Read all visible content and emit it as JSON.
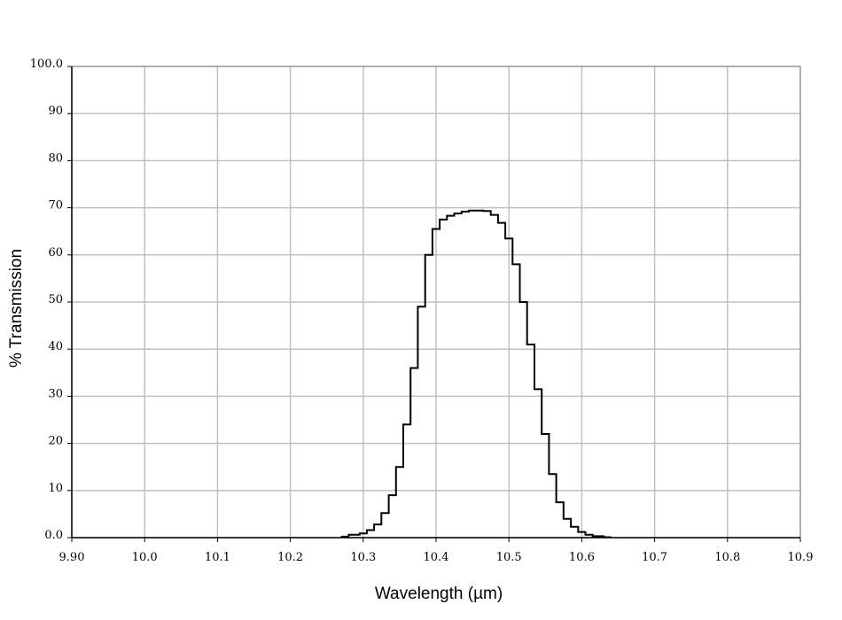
{
  "chart_data": {
    "type": "line",
    "title": "",
    "xlabel": "Wavelength (µm)",
    "ylabel": "% Transmission",
    "xlim": [
      9.9,
      10.9
    ],
    "ylim": [
      0,
      100
    ],
    "x_ticks": [
      9.9,
      10.0,
      10.1,
      10.2,
      10.3,
      10.4,
      10.5,
      10.6,
      10.7,
      10.8,
      10.9
    ],
    "x_tick_labels": [
      "9.90",
      "10.0",
      "10.1",
      "10.2",
      "10.3",
      "10.4",
      "10.5",
      "10.6",
      "10.7",
      "10.8",
      "10.9"
    ],
    "y_ticks": [
      0,
      10,
      20,
      30,
      40,
      50,
      60,
      70,
      80,
      90,
      100
    ],
    "y_tick_labels": [
      "0.0",
      "10",
      "20",
      "30",
      "40",
      "50",
      "60",
      "70",
      "80",
      "90",
      "100.0"
    ],
    "grid": true,
    "line_color": "#000000",
    "grid_color": "#c0c0c0",
    "series": [
      {
        "x": [
          10.27,
          10.29,
          10.3,
          10.31,
          10.32,
          10.33,
          10.34,
          10.35,
          10.36,
          10.37,
          10.38,
          10.39,
          10.4,
          10.41,
          10.42,
          10.43,
          10.44,
          10.45,
          10.46,
          10.47,
          10.48,
          10.49,
          10.5,
          10.51,
          10.52,
          10.53,
          10.54,
          10.55,
          10.56,
          10.57,
          10.58,
          10.59,
          10.6,
          10.61,
          10.62,
          10.64
        ],
        "y": [
          0.2,
          0.6,
          0.9,
          1.6,
          2.8,
          5.2,
          9.0,
          15.0,
          24.0,
          36.0,
          49.0,
          60.0,
          65.5,
          67.5,
          68.3,
          68.8,
          69.2,
          69.4,
          69.4,
          69.3,
          68.5,
          66.8,
          63.5,
          58.0,
          50.0,
          41.0,
          31.5,
          22.0,
          13.5,
          7.5,
          4.0,
          2.3,
          1.2,
          0.6,
          0.3,
          0.1
        ]
      }
    ]
  }
}
